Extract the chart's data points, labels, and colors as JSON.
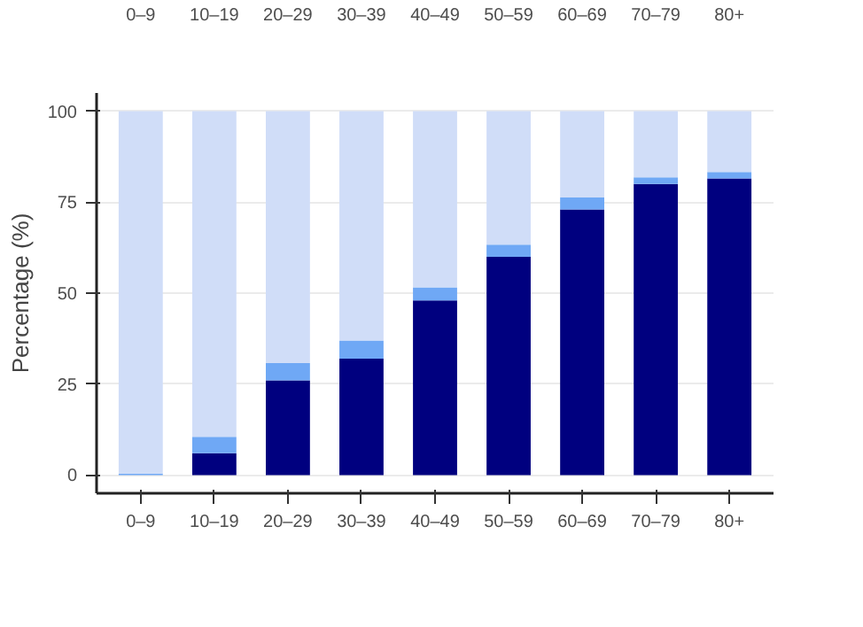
{
  "chart_data": {
    "type": "bar",
    "stacked": true,
    "ylabel": "Percentage (%)",
    "categories": [
      "0–9",
      "10–19",
      "20–29",
      "30–39",
      "40–49",
      "50–59",
      "60–69",
      "70–79",
      "80+"
    ],
    "annotations": [
      "0–9",
      "10–19",
      "20–29",
      "30–39",
      "40–49",
      "50–59",
      "60–69",
      "70–79",
      "80+"
    ],
    "series": [
      {
        "color": "#00007f",
        "values": [
          0,
          6,
          26,
          32,
          48,
          60,
          73,
          80,
          81.5
        ]
      },
      {
        "color": "#6fa8f5",
        "values": [
          0.4,
          4.5,
          4.8,
          5,
          3.6,
          3.3,
          3.3,
          1.8,
          1.8
        ]
      },
      {
        "color": "#d0ddf8",
        "values": [
          99.6,
          89.5,
          69.2,
          63,
          48.4,
          36.7,
          23.7,
          18.2,
          16.7
        ]
      }
    ],
    "ylim": [
      -5,
      105
    ],
    "yticks": [
      0,
      25,
      50,
      75,
      100
    ],
    "grid": "y"
  }
}
